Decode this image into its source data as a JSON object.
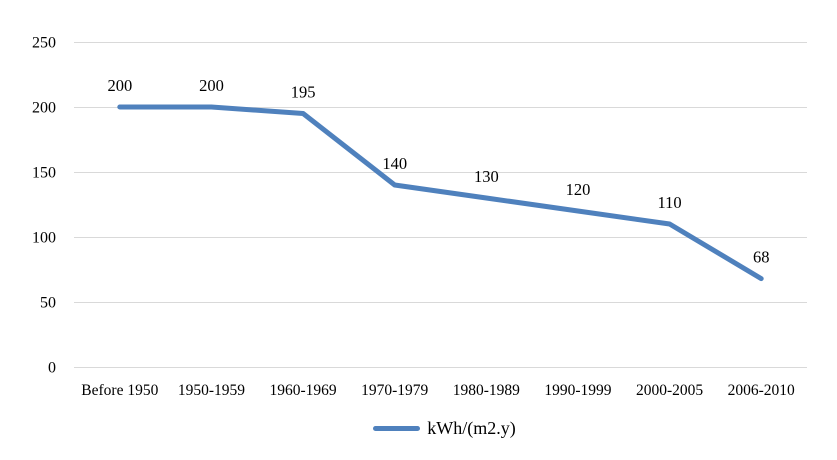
{
  "chart_data": {
    "type": "line",
    "categories": [
      "Before 1950",
      "1950-1959",
      "1960-1969",
      "1970-1979",
      "1980-1989",
      "1990-1999",
      "2000-2005",
      "2006-2010"
    ],
    "series": [
      {
        "name": "kWh/(m2.y)",
        "values": [
          200,
          200,
          195,
          140,
          130,
          120,
          110,
          68
        ]
      }
    ],
    "title": "",
    "xlabel": "",
    "ylabel": "",
    "ylim": [
      0,
      250
    ],
    "yticks": [
      0,
      50,
      100,
      150,
      200,
      250
    ],
    "grid": true,
    "data_labels": [
      200,
      200,
      195,
      140,
      130,
      120,
      110,
      68
    ],
    "legend_position": "bottom",
    "colors": {
      "line": "#4F81BD",
      "gridline": "#D9D9D9",
      "text": "#000000",
      "background": "#FFFFFF"
    }
  }
}
